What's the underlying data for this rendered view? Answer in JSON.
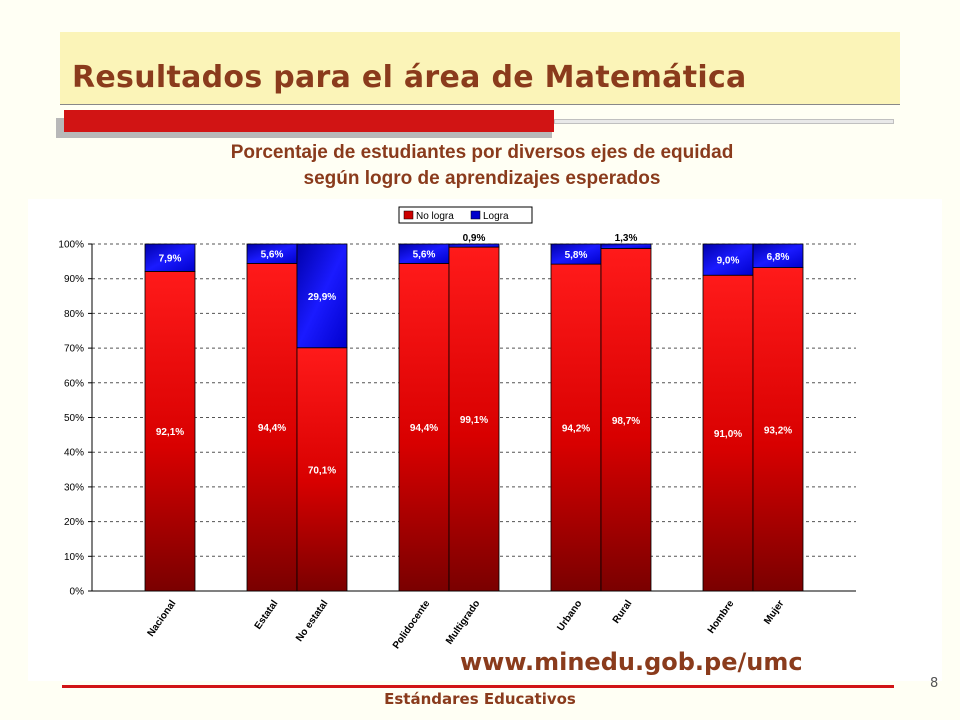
{
  "slide": {
    "title": "Resultados para el área de Matemática",
    "subtitle_line1": "Porcentaje de estudiantes por diversos ejes de equidad",
    "subtitle_line2": "según logro de aprendizajes esperados",
    "url": "www.minedu.gob.pe/umc",
    "footer": "Estándares Educativos",
    "page_number": "8"
  },
  "colors": {
    "title": "#8a3b1c",
    "accent_red": "#d11414",
    "no_logra": "#cc0000",
    "logra": "#0000cc"
  },
  "chart_data": {
    "type": "bar",
    "stacked": true,
    "categories": [
      "Nacional",
      "Estatal",
      "No estatal",
      "Polidocente",
      "Multigrado",
      "Urbano",
      "Rural",
      "Hombre",
      "Mujer"
    ],
    "groups": [
      [
        0
      ],
      [
        1,
        2
      ],
      [
        3,
        4
      ],
      [
        5,
        6
      ],
      [
        7,
        8
      ]
    ],
    "series": [
      {
        "name": "No logra",
        "values": [
          92.1,
          94.4,
          70.1,
          94.4,
          99.1,
          94.2,
          98.7,
          91.0,
          93.2
        ],
        "labels": [
          "92,1%",
          "94,4%",
          "70,1%",
          "94,4%",
          "99,1%",
          "94,2%",
          "98,7%",
          "91,0%",
          "93,2%"
        ]
      },
      {
        "name": "Logra",
        "values": [
          7.9,
          5.6,
          29.9,
          5.6,
          0.9,
          5.8,
          1.3,
          9.0,
          6.8
        ],
        "labels": [
          "7,9%",
          "5,6%",
          "29,9%",
          "5,6%",
          "0,9%",
          "5,8%",
          "1,3%",
          "9,0%",
          "6,8%"
        ]
      }
    ],
    "y_ticks": [
      "0%",
      "10%",
      "20%",
      "30%",
      "40%",
      "50%",
      "60%",
      "70%",
      "80%",
      "90%",
      "100%"
    ],
    "ylim": [
      0,
      100
    ],
    "grid": true,
    "legend_position": "top"
  }
}
